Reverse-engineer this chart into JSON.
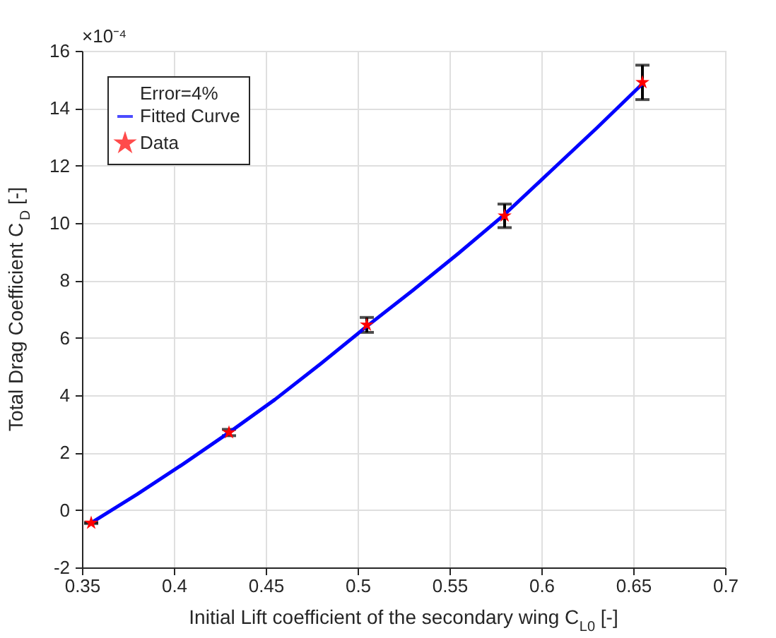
{
  "chart_data": {
    "type": "scatter",
    "xlabel": "Initial Lift coefficient of the secondary wing C$_{L0}$ [-]",
    "ylabel": "Total Drag Coefficient C$_{D}$ [-]",
    "annotations": [
      "×10⁻⁴",
      "Error=4%"
    ],
    "xlim": [
      0.35,
      0.7
    ],
    "xticks": [
      0.35,
      {
        "value": 0.4,
        "label": "0.4"
      },
      0.45,
      {
        "value": 0.5,
        "label": "0.5"
      },
      0.55,
      {
        "value": 0.6,
        "label": "0.6"
      },
      0.65,
      {
        "value": 0.7,
        "label": "0.7"
      }
    ],
    "ylim": [
      -2,
      16
    ],
    "yticks": [
      -2,
      0,
      2,
      4,
      6,
      8,
      10,
      12,
      14,
      16
    ],
    "grid": true,
    "legend": "top left",
    "series": [
      {
        "name": "Fitted Curve",
        "type": "line",
        "color": "#0000ff",
        "marker": "none",
        "line_style": "solid",
        "x": [
          0.355,
          0.38,
          0.405,
          0.43,
          0.455,
          0.48,
          0.505,
          0.53,
          0.555,
          0.58,
          0.605,
          0.63,
          0.655
        ],
        "values": [
          -0.45,
          0.55,
          1.6,
          2.7,
          3.85,
          5.1,
          6.4,
          7.65,
          8.95,
          10.3,
          11.8,
          13.3,
          14.85
        ]
      },
      {
        "name": "Data",
        "type": "scatter",
        "color": "#ff0000",
        "marker": "star",
        "x": [
          0.355,
          0.43,
          0.505,
          0.58,
          0.655
        ],
        "values": [
          -0.45,
          2.7,
          6.45,
          10.25,
          14.9
        ],
        "errors": [
          0.02,
          0.11,
          0.26,
          0.41,
          0.6
        ]
      }
    ]
  }
}
